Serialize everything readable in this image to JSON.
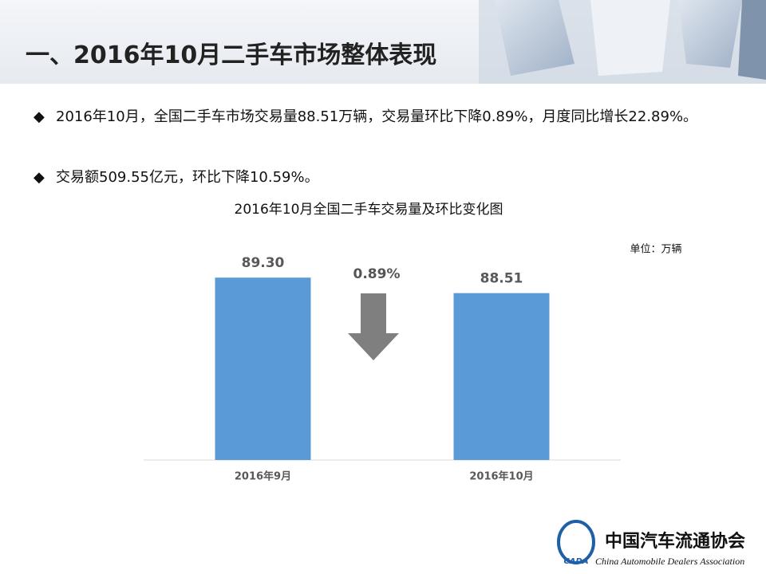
{
  "header": {
    "title": "一、2016年10月二手车市场整体表现"
  },
  "bullets": [
    "2016年10月，全国二手车市场交易量88.51万辆，交易量环比下降0.89%，月度同比增长22.89%。",
    "交易额509.55亿元，环比下降10.59%。"
  ],
  "chart_data": {
    "type": "bar",
    "title": "2016年10月全国二手车交易量及环比变化图",
    "unit": "单位：万辆",
    "annotation": "0.89%",
    "categories": [
      "2016年9月",
      "2016年10月"
    ],
    "values": [
      89.3,
      88.51
    ],
    "value_labels": [
      "89.30",
      "88.51"
    ],
    "color": "#5b9bd5",
    "ylim": [
      80,
      90
    ]
  },
  "footer": {
    "logo_cn": "中国汽车流通协会",
    "logo_en": "China Automobile Dealers Association",
    "logo_abbr": "CADA"
  }
}
